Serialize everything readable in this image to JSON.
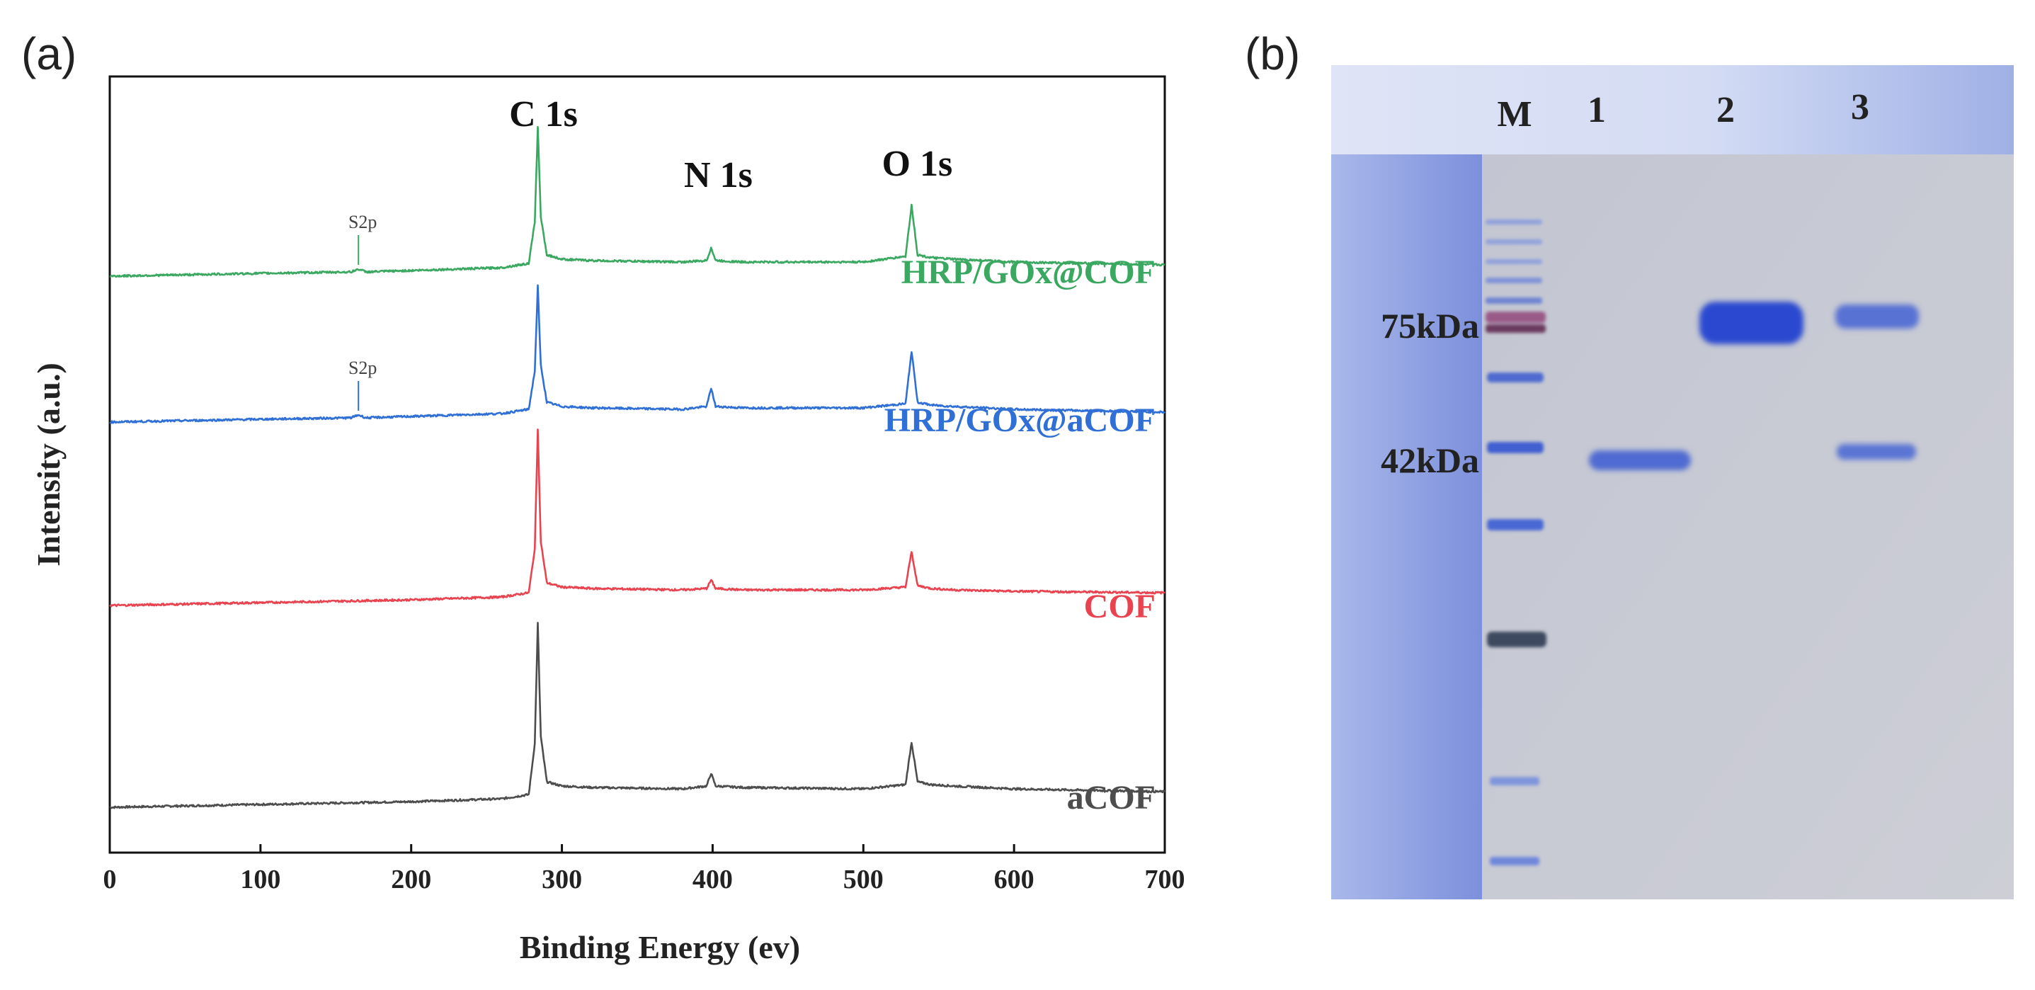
{
  "panel_a": {
    "label": "(a)",
    "chart_data": {
      "type": "line",
      "title": "",
      "xlabel": "Binding Energy (ev)",
      "ylabel": "Intensity (a.u.)",
      "xlim": [
        0,
        700
      ],
      "xticks": [
        0,
        100,
        200,
        300,
        400,
        500,
        600,
        700
      ],
      "xtick_labels": [
        "0",
        "100",
        "200",
        "300",
        "400",
        "500",
        "600",
        "700"
      ],
      "y_ticks_shown": false,
      "peak_annotations": [
        {
          "label": "C 1s",
          "x": 284
        },
        {
          "label": "N 1s",
          "x": 400
        },
        {
          "label": "O 1s",
          "x": 532
        }
      ],
      "series": [
        {
          "name": "aCOF",
          "color": "#4d4d4d",
          "x": [
            0,
            100,
            200,
            260,
            278,
            282,
            284,
            286,
            290,
            300,
            320,
            380,
            396,
            399,
            402,
            420,
            500,
            528,
            532,
            536,
            545,
            560,
            600,
            700
          ],
          "y": [
            0,
            2,
            4,
            6,
            9,
            45,
            130,
            50,
            18,
            15,
            14,
            13,
            15,
            24,
            15,
            14,
            13,
            16,
            46,
            18,
            16,
            15,
            13,
            11
          ]
        },
        {
          "name": "COF",
          "color": "#e8434f",
          "x": [
            0,
            100,
            200,
            260,
            278,
            282,
            284,
            286,
            290,
            300,
            320,
            380,
            396,
            399,
            402,
            420,
            500,
            528,
            532,
            536,
            545,
            560,
            600,
            700
          ],
          "y": [
            0,
            2,
            4,
            6,
            9,
            40,
            125,
            45,
            16,
            13,
            12,
            11,
            12,
            18,
            12,
            11,
            11,
            13,
            38,
            14,
            12,
            11,
            10,
            9
          ]
        },
        {
          "name": "HRP/GOx@aCOF",
          "color": "#2f6fd6",
          "x": [
            0,
            100,
            160,
            165,
            170,
            200,
            260,
            278,
            282,
            284,
            286,
            290,
            300,
            320,
            380,
            396,
            399,
            402,
            420,
            500,
            528,
            532,
            536,
            545,
            560,
            600,
            700
          ],
          "y": [
            0,
            2,
            3,
            5,
            3,
            4,
            6,
            9,
            36,
            96,
            40,
            14,
            11,
            10,
            9,
            11,
            24,
            11,
            10,
            10,
            13,
            50,
            14,
            12,
            11,
            9,
            7
          ],
          "annotation": {
            "label": "S2p",
            "x": 165
          }
        },
        {
          "name": "HRP/GOx@COF",
          "color": "#3aa860",
          "x": [
            0,
            100,
            160,
            165,
            170,
            200,
            260,
            278,
            282,
            284,
            286,
            290,
            300,
            320,
            380,
            396,
            399,
            402,
            420,
            500,
            528,
            532,
            536,
            545,
            560,
            600,
            700
          ],
          "y": [
            0,
            2,
            3,
            5,
            3,
            4,
            6,
            9,
            38,
            106,
            42,
            15,
            12,
            11,
            10,
            11,
            20,
            11,
            10,
            10,
            14,
            50,
            15,
            13,
            12,
            10,
            8
          ],
          "annotation": {
            "label": "S2p",
            "x": 165
          }
        }
      ],
      "legend_placement": "labels beside each curve (right)"
    }
  },
  "panel_b": {
    "label": "(b)",
    "lane_labels": [
      "M",
      "1",
      "2",
      "3"
    ],
    "marker_labels": [
      "75kDa",
      "42kDa"
    ],
    "bands": [
      {
        "lane": "1",
        "marker": "42kDa",
        "intensity": 0.75
      },
      {
        "lane": "2",
        "marker": "75kDa",
        "intensity": 1.0
      },
      {
        "lane": "3",
        "marker": "75kDa",
        "intensity": 0.65
      },
      {
        "lane": "3",
        "marker": "42kDa",
        "intensity": 0.6
      }
    ],
    "colors": {
      "band_blue": "#3550c6",
      "marker_dark": "#7a3a5a",
      "gel_bg": "#c8cad4",
      "gel_header": "#cfd7f2"
    }
  }
}
